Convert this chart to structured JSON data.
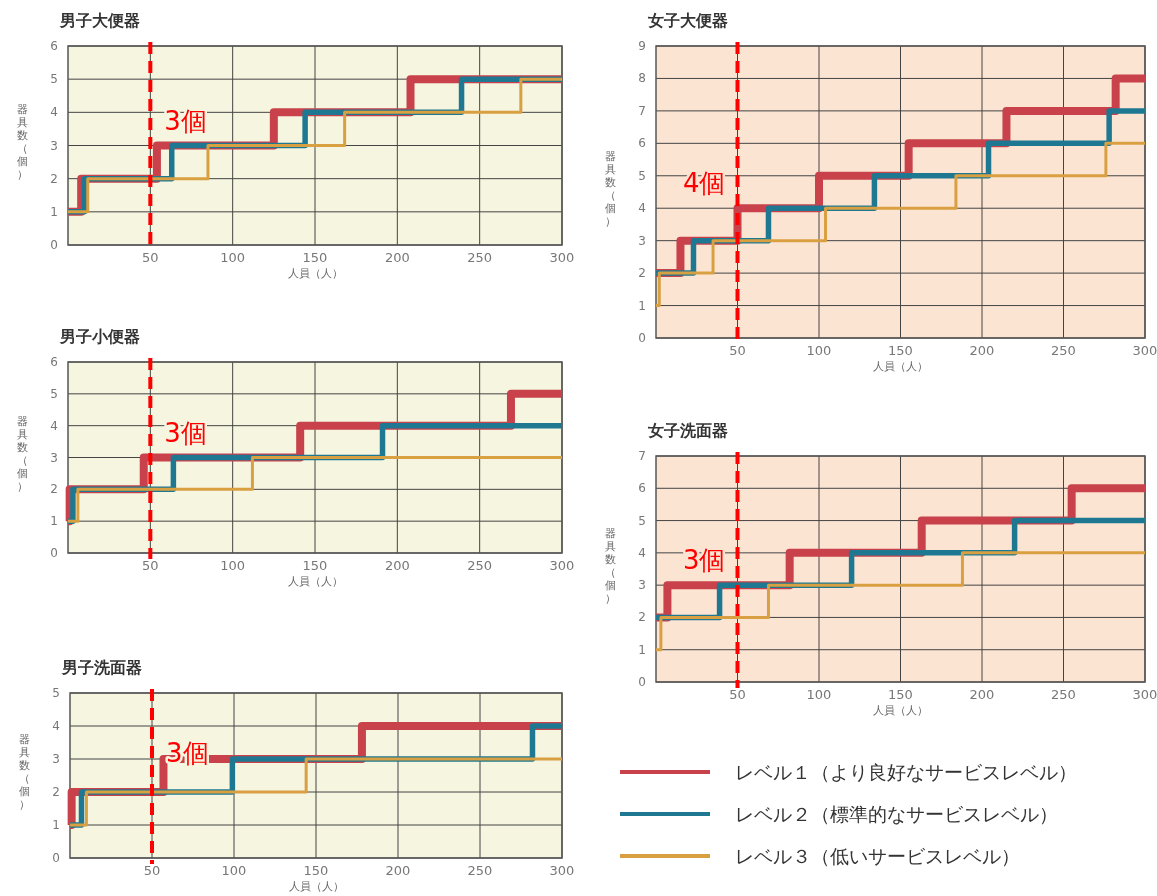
{
  "chart_data": [
    {
      "type": "step",
      "title": "男子大便器",
      "xlabel": "人員（人）",
      "ylabel": "器具数（個）",
      "xlim": [
        0,
        300
      ],
      "xticks": [
        50,
        100,
        150,
        200,
        250,
        300
      ],
      "ylim": [
        0,
        6
      ],
      "yticks": [
        0,
        1,
        2,
        3,
        4,
        5,
        6
      ],
      "grid": true,
      "series": [
        {
          "color": "#c8414b",
          "x": [
            0,
            8,
            54,
            125,
            208,
            300
          ],
          "values": [
            1,
            2,
            3,
            4,
            5,
            5
          ]
        },
        {
          "color": "#1f7891",
          "x": [
            0,
            10,
            63,
            144,
            239,
            300
          ],
          "values": [
            1,
            2,
            3,
            4,
            5,
            5
          ]
        },
        {
          "color": "#d9a042",
          "x": [
            0,
            12,
            85,
            168,
            275,
            300
          ],
          "values": [
            1,
            2,
            3,
            4,
            5,
            5
          ]
        }
      ],
      "ref_lines": [
        {
          "axis": "x",
          "value": 50,
          "color": "#ff0000",
          "line_style": "dashed"
        }
      ],
      "annotations": [
        "3個"
      ]
    },
    {
      "type": "step",
      "title": "女子大便器",
      "xlabel": "人員（人）",
      "ylabel": "器具数（個）",
      "xlim": [
        0,
        300
      ],
      "xticks": [
        50,
        100,
        150,
        200,
        250,
        300
      ],
      "ylim": [
        0,
        9
      ],
      "yticks": [
        0,
        1,
        2,
        3,
        4,
        5,
        6,
        7,
        8,
        9
      ],
      "grid": true,
      "series": [
        {
          "color": "#c8414b",
          "x": [
            0,
            15,
            50,
            100,
            155,
            215,
            282,
            300
          ],
          "values": [
            2,
            3,
            4,
            5,
            6,
            7,
            8,
            8
          ]
        },
        {
          "color": "#1f7891",
          "x": [
            0,
            23,
            69,
            134,
            204,
            278,
            300
          ],
          "values": [
            2,
            3,
            4,
            5,
            6,
            7,
            7
          ]
        },
        {
          "color": "#d9a042",
          "x": [
            0,
            2,
            35,
            104,
            184,
            276,
            300
          ],
          "values": [
            1,
            2,
            3,
            4,
            5,
            6,
            6
          ]
        }
      ],
      "ref_lines": [
        {
          "axis": "x",
          "value": 50,
          "color": "#ff0000",
          "line_style": "dashed"
        }
      ],
      "annotations": [
        "4個"
      ]
    },
    {
      "type": "step",
      "title": "男子小便器",
      "xlabel": "人員（人）",
      "ylabel": "器具数（個）",
      "xlim": [
        0,
        300
      ],
      "xticks": [
        50,
        100,
        150,
        200,
        250,
        300
      ],
      "ylim": [
        0,
        6
      ],
      "yticks": [
        0,
        1,
        2,
        3,
        4,
        5,
        6
      ],
      "grid": true,
      "series": [
        {
          "color": "#c8414b",
          "x": [
            0,
            1,
            46,
            141,
            269,
            300
          ],
          "values": [
            1,
            2,
            3,
            4,
            5,
            5
          ]
        },
        {
          "color": "#1f7891",
          "x": [
            0,
            3,
            64,
            191,
            300
          ],
          "values": [
            1,
            2,
            3,
            4,
            4
          ]
        },
        {
          "color": "#d9a042",
          "x": [
            0,
            6,
            112,
            300
          ],
          "values": [
            1,
            2,
            3,
            3
          ]
        }
      ],
      "ref_lines": [
        {
          "axis": "x",
          "value": 50,
          "color": "#ff0000",
          "line_style": "dashed"
        }
      ],
      "annotations": [
        "3個"
      ]
    },
    {
      "type": "step",
      "title": "男子洗面器",
      "xlabel": "人員（人）",
      "ylabel": "器具数（個）",
      "xlim": [
        0,
        300
      ],
      "xticks": [
        50,
        100,
        150,
        200,
        250,
        300
      ],
      "ylim": [
        0,
        5
      ],
      "yticks": [
        0,
        1,
        2,
        3,
        4,
        5
      ],
      "grid": true,
      "series": [
        {
          "color": "#c8414b",
          "x": [
            0,
            1,
            57,
            178,
            300
          ],
          "values": [
            1,
            2,
            3,
            4,
            4
          ]
        },
        {
          "color": "#1f7891",
          "x": [
            0,
            7,
            99,
            282,
            300
          ],
          "values": [
            1,
            2,
            3,
            4,
            4
          ]
        },
        {
          "color": "#d9a042",
          "x": [
            0,
            10,
            144,
            300
          ],
          "values": [
            1,
            2,
            3,
            3
          ]
        }
      ],
      "ref_lines": [
        {
          "axis": "x",
          "value": 50,
          "color": "#ff0000",
          "line_style": "dashed"
        }
      ],
      "annotations": [
        "3個"
      ]
    },
    {
      "type": "step",
      "title": "女子洗面器",
      "xlabel": "人員（人）",
      "ylabel": "器具数（個）",
      "xlim": [
        0,
        300
      ],
      "xticks": [
        50,
        100,
        150,
        200,
        250,
        300
      ],
      "ylim": [
        0,
        7
      ],
      "yticks": [
        0,
        1,
        2,
        3,
        4,
        5,
        6,
        7
      ],
      "grid": true,
      "legend": "bottom",
      "series": [
        {
          "name": "レベル１（より良好なサービスレベル）",
          "color": "#c8414b",
          "x": [
            0,
            7,
            82,
            163,
            255,
            300
          ],
          "values": [
            2,
            3,
            4,
            5,
            6,
            6
          ]
        },
        {
          "name": "レベル２（標準的なサービスレベル）",
          "color": "#1f7891",
          "x": [
            0,
            39,
            120,
            220,
            300
          ],
          "values": [
            2,
            3,
            4,
            5,
            5
          ]
        },
        {
          "name": "レベル３（低いサービスレベル）",
          "color": "#d9a042",
          "x": [
            0,
            3,
            69,
            188,
            300
          ],
          "values": [
            1,
            2,
            3,
            4,
            4
          ]
        }
      ],
      "ref_lines": [
        {
          "axis": "x",
          "value": 50,
          "color": "#ff0000",
          "line_style": "dashed"
        }
      ],
      "annotations": [
        "3個"
      ]
    }
  ]
}
